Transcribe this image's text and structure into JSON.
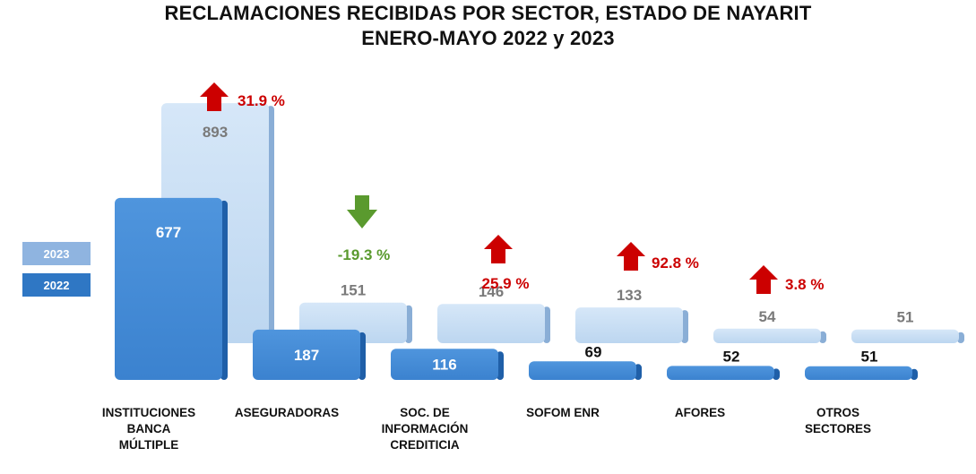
{
  "title_line1": "RECLAMACIONES RECIBIDAS POR SECTOR, ESTADO DE NAYARIT",
  "title_line2": "ENERO-MAYO 2022 y 2023",
  "legend": {
    "y2023": "2023",
    "y2022": "2022"
  },
  "colors": {
    "s2022": "#3b82cf",
    "s2022_dark": "#1f5fa8",
    "s2023": "#bcd6f0",
    "s2023_dark": "#8aaed6",
    "up_arrow": "#cc0000",
    "down_arrow": "#5a9a2e"
  },
  "chart_data": {
    "type": "bar",
    "title": "RECLAMACIONES RECIBIDAS POR SECTOR, ESTADO DE NAYARIT ENERO-MAYO 2022 y 2023",
    "categories": [
      "INSTITUCIONES BANCA MÚLTIPLE",
      "ASEGURADORAS",
      "SOC. DE INFORMACIÓN CREDITICIA",
      "SOFOM ENR",
      "AFORES",
      "OTROS SECTORES"
    ],
    "category_lines": [
      [
        "INSTITUCIONES",
        "BANCA",
        "MÚLTIPLE"
      ],
      [
        "ASEGURADORAS"
      ],
      [
        "SOC. DE",
        "INFORMACIÓN",
        "CREDITICIA"
      ],
      [
        "SOFOM ENR"
      ],
      [
        "AFORES"
      ],
      [
        "OTROS",
        "SECTORES"
      ]
    ],
    "series": [
      {
        "name": "2022",
        "values": [
          677,
          187,
          116,
          69,
          52,
          51
        ]
      },
      {
        "name": "2023",
        "values": [
          893,
          151,
          146,
          133,
          54,
          51
        ]
      }
    ],
    "changes": [
      {
        "label": "31.9 %",
        "direction": "up"
      },
      {
        "label": "-19.3 %",
        "direction": "down"
      },
      {
        "label": "25.9 %",
        "direction": "up"
      },
      {
        "label": "92.8 %",
        "direction": "up"
      },
      {
        "label": "3.8 %",
        "direction": "up"
      },
      null
    ],
    "legend_position": "left",
    "grid": false
  }
}
